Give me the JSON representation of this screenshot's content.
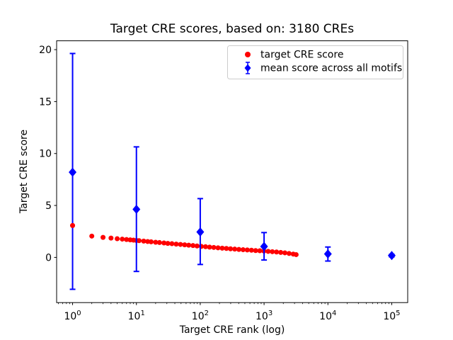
{
  "figure": {
    "title": "Target CRE scores, based on: 3180 CREs",
    "xlabel": "Target CRE rank (log)",
    "ylabel": "Target CRE score",
    "background_color": "#ffffff",
    "axis_color": "#000000"
  },
  "legend": {
    "border_color": "#cccccc",
    "items": [
      {
        "label": "target CRE score",
        "marker": "red-circle",
        "color": "#ff0000"
      },
      {
        "label": "mean score across all motifs",
        "marker": "blue-diamond-errorbar",
        "color": "#0000ff"
      }
    ]
  },
  "chart_data": {
    "type": "scatter",
    "title": "Target CRE scores, based on: 3180 CREs",
    "xlabel": "Target CRE rank (log)",
    "ylabel": "Target CRE score",
    "x_scale": "log",
    "xlim_log10": [
      -0.25,
      5.25
    ],
    "ylim": [
      -4.35,
      20.85
    ],
    "grid": false,
    "legend_position": "upper right",
    "x_major_ticks": [
      1,
      10,
      100,
      1000,
      10000,
      100000
    ],
    "x_major_tick_exponents": [
      "0",
      "1",
      "2",
      "3",
      "4",
      "5"
    ],
    "y_ticks": [
      0,
      5,
      10,
      15,
      20
    ],
    "y_tick_labels": [
      "0",
      "5",
      "10",
      "15",
      "20"
    ],
    "series": [
      {
        "name": "target CRE score",
        "marker": "circle",
        "color": "#ff0000",
        "points": [
          [
            1,
            3.07
          ],
          [
            2,
            2.05
          ],
          [
            3,
            1.93
          ],
          [
            4,
            1.86
          ],
          [
            5,
            1.8
          ],
          [
            6,
            1.76
          ],
          [
            7,
            1.72
          ],
          [
            8,
            1.69
          ],
          [
            9,
            1.66
          ],
          [
            10,
            1.63
          ],
          [
            11,
            1.61
          ],
          [
            13,
            1.57
          ],
          [
            15,
            1.53
          ],
          [
            17,
            1.5
          ],
          [
            20,
            1.46
          ],
          [
            23,
            1.43
          ],
          [
            27,
            1.39
          ],
          [
            31,
            1.35
          ],
          [
            36,
            1.32
          ],
          [
            42,
            1.28
          ],
          [
            49,
            1.25
          ],
          [
            57,
            1.21
          ],
          [
            66,
            1.18
          ],
          [
            77,
            1.14
          ],
          [
            89,
            1.1
          ],
          [
            104,
            1.06
          ],
          [
            121,
            1.03
          ],
          [
            140,
            0.99
          ],
          [
            163,
            0.96
          ],
          [
            190,
            0.92
          ],
          [
            221,
            0.89
          ],
          [
            257,
            0.86
          ],
          [
            298,
            0.83
          ],
          [
            347,
            0.8
          ],
          [
            403,
            0.77
          ],
          [
            469,
            0.74
          ],
          [
            545,
            0.72
          ],
          [
            634,
            0.69
          ],
          [
            737,
            0.66
          ],
          [
            857,
            0.64
          ],
          [
            996,
            0.61
          ],
          [
            1159,
            0.58
          ],
          [
            1347,
            0.55
          ],
          [
            1567,
            0.52
          ],
          [
            1822,
            0.48
          ],
          [
            2118,
            0.44
          ],
          [
            2463,
            0.38
          ],
          [
            2864,
            0.32
          ],
          [
            3180,
            0.27
          ]
        ]
      },
      {
        "name": "mean score across all motifs",
        "marker": "diamond",
        "color": "#0000ff",
        "error_bars": true,
        "points": [
          {
            "x": 1,
            "y": 8.2,
            "lo": -3.07,
            "hi": 19.63
          },
          {
            "x": 10,
            "y": 4.63,
            "lo": -1.35,
            "hi": 10.64
          },
          {
            "x": 100,
            "y": 2.45,
            "lo": -0.68,
            "hi": 5.66
          },
          {
            "x": 1000,
            "y": 1.05,
            "lo": -0.25,
            "hi": 2.39
          },
          {
            "x": 10000,
            "y": 0.33,
            "lo": -0.35,
            "hi": 1.0
          },
          {
            "x": 100000,
            "y": 0.18,
            "lo": 0.05,
            "hi": 0.3
          }
        ]
      }
    ]
  }
}
